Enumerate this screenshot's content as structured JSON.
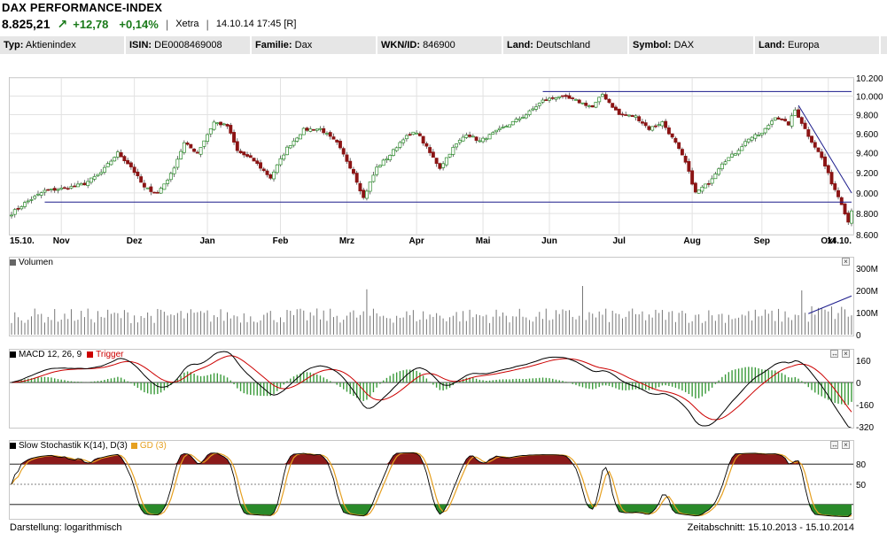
{
  "header": {
    "title": "DAX PERFORMANCE-INDEX",
    "price": "8.825,21",
    "change": "+12,78",
    "change_pct": "+0,14%",
    "exchange": "Xetra",
    "datetime": "14.10.14 17:45 [R]"
  },
  "info": [
    {
      "label": "Typ:",
      "value": "Aktienindex"
    },
    {
      "label": "ISIN:",
      "value": "DE0008469008"
    },
    {
      "label": "Familie:",
      "value": "Dax"
    },
    {
      "label": "WKN/ID:",
      "value": "846900"
    },
    {
      "label": "Land:",
      "value": "Deutschland"
    },
    {
      "label": "Symbol:",
      "value": "DAX"
    },
    {
      "label": "Land:",
      "value": "Europa"
    }
  ],
  "footer": {
    "left": "Darstellung: logarithmisch",
    "right": "Zeitabschnitt: 15.10.2013 - 15.10.2014"
  },
  "chart_data": [
    {
      "type": "candlestick",
      "name": "price",
      "x_labels": [
        "15.10.",
        "Nov",
        "Dez",
        "Jan",
        "Feb",
        "Mrz",
        "Apr",
        "Mai",
        "Jun",
        "Jul",
        "Aug",
        "Sep",
        "Okt",
        "14.10."
      ],
      "y_ticks": [
        8600,
        8800,
        9000,
        9200,
        9400,
        9600,
        9800,
        10000,
        10200
      ],
      "y_tick_labels": [
        "8.600",
        "8.800",
        "9.000",
        "9.200",
        "9.400",
        "9.600",
        "9.800",
        "10.000",
        "10.200"
      ],
      "ylim": [
        8600,
        10200
      ],
      "scale": "log",
      "grid": true,
      "close_anchors": [
        {
          "t": 0,
          "v": 8800
        },
        {
          "t": 4,
          "v": 8900
        },
        {
          "t": 10,
          "v": 9020
        },
        {
          "t": 17,
          "v": 9050
        },
        {
          "t": 22,
          "v": 9090
        },
        {
          "t": 27,
          "v": 9200
        },
        {
          "t": 32,
          "v": 9400
        },
        {
          "t": 36,
          "v": 9260
        },
        {
          "t": 40,
          "v": 9050
        },
        {
          "t": 44,
          "v": 9000
        },
        {
          "t": 48,
          "v": 9180
        },
        {
          "t": 52,
          "v": 9500
        },
        {
          "t": 56,
          "v": 9400
        },
        {
          "t": 61,
          "v": 9720
        },
        {
          "t": 65,
          "v": 9680
        },
        {
          "t": 68,
          "v": 9420
        },
        {
          "t": 73,
          "v": 9320
        },
        {
          "t": 78,
          "v": 9150
        },
        {
          "t": 83,
          "v": 9450
        },
        {
          "t": 88,
          "v": 9640
        },
        {
          "t": 93,
          "v": 9650
        },
        {
          "t": 98,
          "v": 9500
        },
        {
          "t": 103,
          "v": 9200
        },
        {
          "t": 106,
          "v": 8950
        },
        {
          "t": 110,
          "v": 9250
        },
        {
          "t": 114,
          "v": 9380
        },
        {
          "t": 118,
          "v": 9550
        },
        {
          "t": 122,
          "v": 9620
        },
        {
          "t": 126,
          "v": 9400
        },
        {
          "t": 129,
          "v": 9250
        },
        {
          "t": 133,
          "v": 9450
        },
        {
          "t": 137,
          "v": 9600
        },
        {
          "t": 141,
          "v": 9520
        },
        {
          "t": 145,
          "v": 9600
        },
        {
          "t": 150,
          "v": 9700
        },
        {
          "t": 155,
          "v": 9800
        },
        {
          "t": 160,
          "v": 9950
        },
        {
          "t": 165,
          "v": 10000
        },
        {
          "t": 170,
          "v": 9950
        },
        {
          "t": 175,
          "v": 9880
        },
        {
          "t": 178,
          "v": 10020
        },
        {
          "t": 183,
          "v": 9800
        },
        {
          "t": 188,
          "v": 9780
        },
        {
          "t": 192,
          "v": 9650
        },
        {
          "t": 196,
          "v": 9720
        },
        {
          "t": 200,
          "v": 9500
        },
        {
          "t": 203,
          "v": 9300
        },
        {
          "t": 206,
          "v": 9000
        },
        {
          "t": 210,
          "v": 9100
        },
        {
          "t": 214,
          "v": 9300
        },
        {
          "t": 218,
          "v": 9400
        },
        {
          "t": 222,
          "v": 9550
        },
        {
          "t": 226,
          "v": 9600
        },
        {
          "t": 230,
          "v": 9780
        },
        {
          "t": 234,
          "v": 9700
        },
        {
          "t": 236,
          "v": 9850
        },
        {
          "t": 240,
          "v": 9580
        },
        {
          "t": 244,
          "v": 9350
        },
        {
          "t": 247,
          "v": 9100
        },
        {
          "t": 250,
          "v": 8900
        },
        {
          "t": 252,
          "v": 8720
        },
        {
          "t": 253,
          "v": 8825
        }
      ],
      "trendlines": [
        {
          "from": {
            "t": 10,
            "v": 8910
          },
          "to": {
            "t": 253,
            "v": 8910
          }
        },
        {
          "from": {
            "t": 160,
            "v": 10050
          },
          "to": {
            "t": 253,
            "v": 10050
          }
        },
        {
          "from": {
            "t": 237,
            "v": 9900
          },
          "to": {
            "t": 253,
            "v": 9000
          }
        }
      ]
    },
    {
      "type": "bar",
      "name": "Volumen",
      "title": "Volumen",
      "y_ticks": [
        0,
        100,
        200,
        300
      ],
      "y_tick_labels": [
        "0",
        "100M",
        "200M",
        "300M"
      ],
      "unit": "M",
      "typical_value": 95,
      "spikes": [
        {
          "t": 107,
          "v": 205
        },
        {
          "t": 172,
          "v": 220
        },
        {
          "t": 238,
          "v": 200
        }
      ],
      "trendline": {
        "from": {
          "t": 240,
          "v": 95
        },
        "to": {
          "t": 253,
          "v": 175
        }
      }
    },
    {
      "type": "line",
      "name": "MACD",
      "title": "MACD 12, 26, 9",
      "trigger_label": "Trigger",
      "y_ticks": [
        160,
        0,
        -160,
        -320
      ],
      "series": [
        {
          "name": "MACD 12, 26, 9",
          "color": "#000000"
        },
        {
          "name": "Trigger",
          "color": "#cc0000"
        }
      ],
      "histogram_color": "#3a9a3a"
    },
    {
      "type": "line",
      "name": "Stochastik",
      "title": "Slow Stochastik K(14), D(3)",
      "gd_label": "GD (3)",
      "y_ticks": [
        80,
        50,
        20
      ],
      "y_tick_labels": [
        "80",
        "50",
        ""
      ],
      "series": [
        {
          "name": "Slow Stochastik K(14), D(3)",
          "color": "#000000"
        },
        {
          "name": "GD (3)",
          "color": "#e6a020"
        }
      ],
      "overbought_fill": "#8b1a1a",
      "oversold_fill": "#2a8a2a"
    }
  ]
}
